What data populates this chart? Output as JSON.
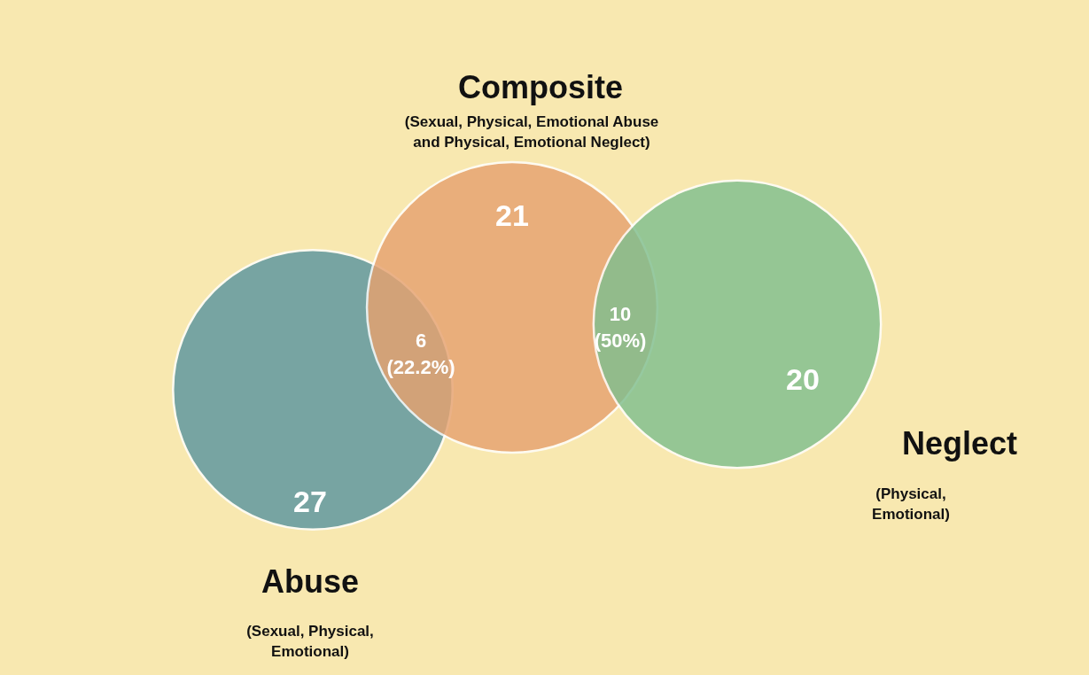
{
  "chart_data": {
    "type": "other",
    "categories": [
      "Abuse",
      "Composite",
      "Neglect"
    ],
    "values": [
      27,
      21,
      20
    ],
    "data_labels": true,
    "colors": [
      "#5b96a0",
      "#e6a270",
      "#80bf8f"
    ],
    "annotations": [
      "(Sexual, Physical,\nEmotional)",
      "(Sexual, Physical, Emotional Abuse\nand Physical, Emotional Neglect)",
      "(Physical,\nEmotional)",
      "6\n(22.2%)",
      "10\n(50%)"
    ]
  }
}
